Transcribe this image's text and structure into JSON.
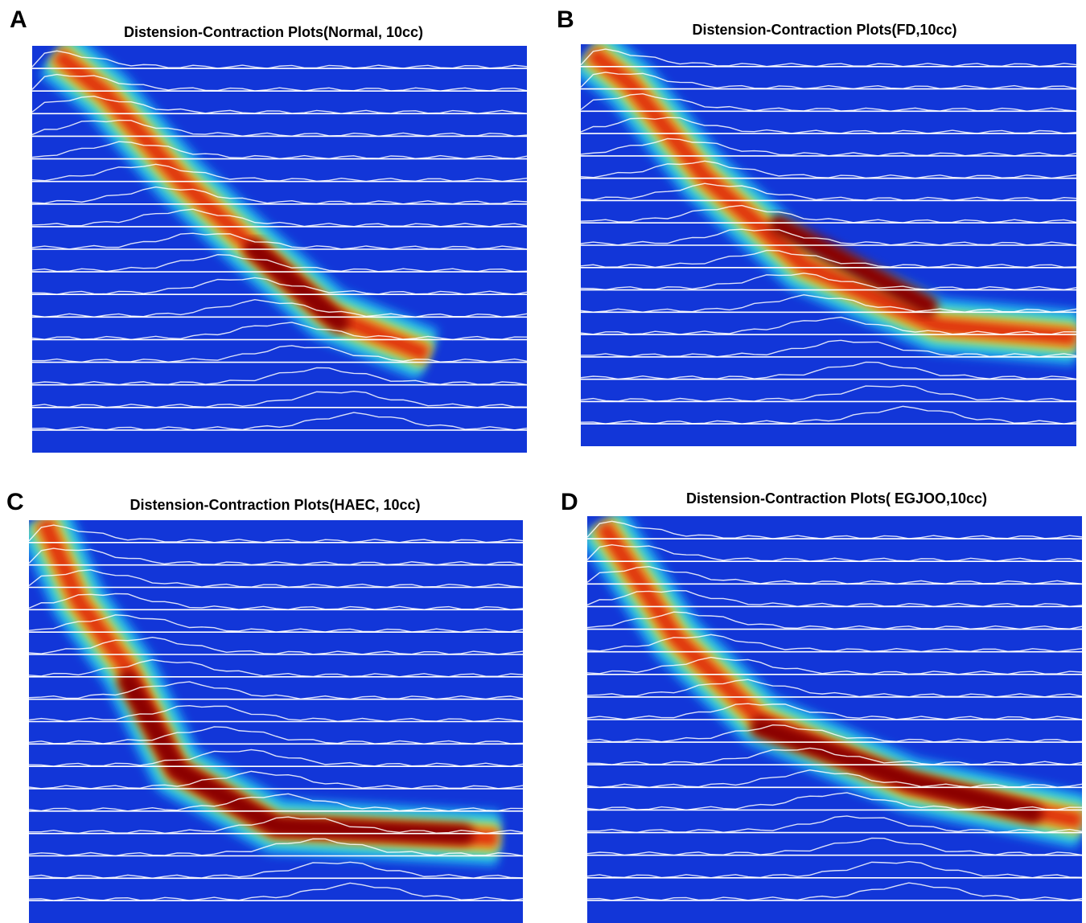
{
  "panels": [
    {
      "label": "A",
      "title": "Distension-Contraction Plots(Normal, 10cc)"
    },
    {
      "label": "B",
      "title": "Distension-Contraction Plots(FD,10cc)"
    },
    {
      "label": "C",
      "title": "Distension-Contraction Plots(HAEC, 10cc)"
    },
    {
      "label": "D",
      "title": "Distension-Contraction Plots( EGJOO,10cc)"
    }
  ]
}
